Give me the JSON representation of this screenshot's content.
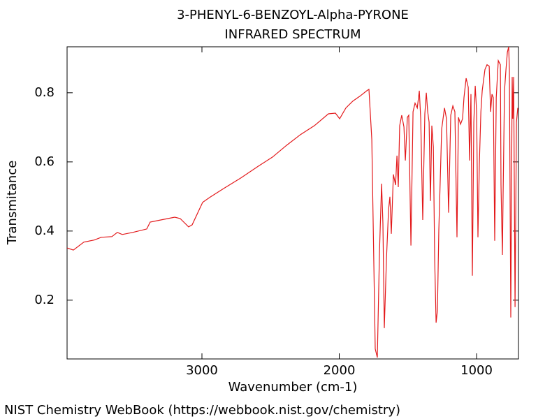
{
  "chart_data": {
    "type": "line",
    "title": "3-PHENYL-6-BENZOYL-Alpha-PYRONE",
    "subtitle": "INFRARED SPECTRUM",
    "xlabel": "Wavenumber (cm-1)",
    "ylabel": "Transmitance",
    "footer": "NIST Chemistry WebBook (https://webbook.nist.gov/chemistry)",
    "color": "#e31a1c",
    "xlim": [
      3982,
      695
    ],
    "ylim": [
      0.03,
      0.933
    ],
    "xticks": [
      3000,
      2000,
      1000
    ],
    "yticks": [
      0.2,
      0.4,
      0.6,
      0.8
    ],
    "x": [
      3982,
      3936,
      3860,
      3784,
      3733,
      3656,
      3616,
      3580,
      3504,
      3402,
      3377,
      3300,
      3198,
      3158,
      3097,
      3071,
      2995,
      2944,
      2842,
      2715,
      2588,
      2486,
      2384,
      2282,
      2181,
      2079,
      2028,
      1997,
      1952,
      1901,
      1850,
      1799,
      1784,
      1763,
      1738,
      1723,
      1707,
      1692,
      1682,
      1672,
      1656,
      1641,
      1631,
      1621,
      1606,
      1590,
      1580,
      1570,
      1560,
      1545,
      1529,
      1519,
      1504,
      1494,
      1478,
      1463,
      1448,
      1432,
      1417,
      1407,
      1392,
      1377,
      1366,
      1356,
      1346,
      1336,
      1326,
      1315,
      1305,
      1295,
      1285,
      1275,
      1254,
      1234,
      1219,
      1204,
      1188,
      1173,
      1158,
      1143,
      1132,
      1117,
      1102,
      1092,
      1076,
      1061,
      1051,
      1041,
      1031,
      1020,
      1010,
      1000,
      990,
      980,
      969,
      959,
      939,
      924,
      908,
      898,
      888,
      878,
      868,
      857,
      842,
      827,
      822,
      817,
      812,
      807,
      797,
      786,
      776,
      766,
      761,
      751,
      741,
      736,
      730,
      720,
      710,
      700
    ],
    "values": [
      0.351,
      0.345,
      0.368,
      0.374,
      0.382,
      0.384,
      0.396,
      0.39,
      0.396,
      0.406,
      0.426,
      0.432,
      0.44,
      0.436,
      0.412,
      0.418,
      0.483,
      0.497,
      0.523,
      0.554,
      0.588,
      0.614,
      0.648,
      0.679,
      0.705,
      0.739,
      0.741,
      0.725,
      0.756,
      0.776,
      0.79,
      0.806,
      0.81,
      0.665,
      0.059,
      0.034,
      0.341,
      0.537,
      0.422,
      0.119,
      0.321,
      0.463,
      0.499,
      0.392,
      0.564,
      0.533,
      0.618,
      0.527,
      0.705,
      0.735,
      0.701,
      0.604,
      0.729,
      0.735,
      0.358,
      0.745,
      0.77,
      0.756,
      0.806,
      0.725,
      0.432,
      0.739,
      0.8,
      0.745,
      0.715,
      0.487,
      0.705,
      0.644,
      0.317,
      0.135,
      0.17,
      0.402,
      0.695,
      0.756,
      0.725,
      0.453,
      0.735,
      0.762,
      0.745,
      0.382,
      0.729,
      0.709,
      0.725,
      0.786,
      0.842,
      0.816,
      0.604,
      0.796,
      0.271,
      0.715,
      0.82,
      0.745,
      0.382,
      0.594,
      0.745,
      0.806,
      0.867,
      0.881,
      0.877,
      0.745,
      0.796,
      0.786,
      0.372,
      0.786,
      0.893,
      0.881,
      0.533,
      0.432,
      0.331,
      0.503,
      0.806,
      0.867,
      0.917,
      0.933,
      0.867,
      0.15,
      0.846,
      0.725,
      0.846,
      0.18,
      0.715,
      0.756
    ]
  }
}
